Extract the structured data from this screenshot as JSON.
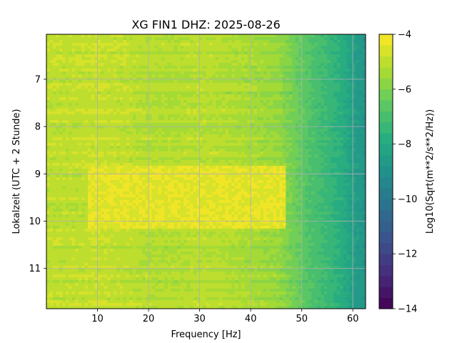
{
  "chart_data": {
    "type": "heatmap",
    "title": "XG FIN1  DHZ: 2025-08-26",
    "xlabel": "Frequency [Hz]",
    "ylabel": "Lokalzeit (UTC + 2 Stunde)",
    "xlim": [
      0,
      62.5
    ],
    "ylim": [
      11.85,
      6.05
    ],
    "y_inverted": true,
    "xticks": [
      10,
      20,
      30,
      40,
      50,
      60
    ],
    "yticks": [
      7,
      8,
      9,
      10,
      11
    ],
    "grid": true,
    "colormap": "viridis",
    "colorbar": {
      "label": "Log10(Sqrt(m**2/s**2/Hz))",
      "range": [
        -14,
        -4
      ],
      "ticks": [
        -4,
        -6,
        -8,
        -10,
        -12,
        -14
      ],
      "tick_labels": [
        "−4",
        "−6",
        "−8",
        "−10",
        "−12",
        "−14"
      ],
      "levels": 25
    },
    "spectrum_profile": {
      "frequency_hz": [
        0,
        5,
        10,
        15,
        20,
        25,
        30,
        35,
        40,
        45,
        48,
        50,
        52,
        55,
        58,
        60,
        62.5
      ],
      "log10_amplitude": [
        -5.0,
        -5.0,
        -4.9,
        -5.0,
        -5.2,
        -5.2,
        -5.1,
        -5.2,
        -5.4,
        -5.6,
        -6.1,
        -6.5,
        -6.9,
        -7.3,
        -7.8,
        -8.4,
        -8.8
      ]
    },
    "high_amplitude_band": {
      "time_start": 8.8,
      "time_end": 10.15,
      "frequency_start": 8,
      "frequency_end": 47,
      "log10_amplitude": -4.4
    }
  }
}
